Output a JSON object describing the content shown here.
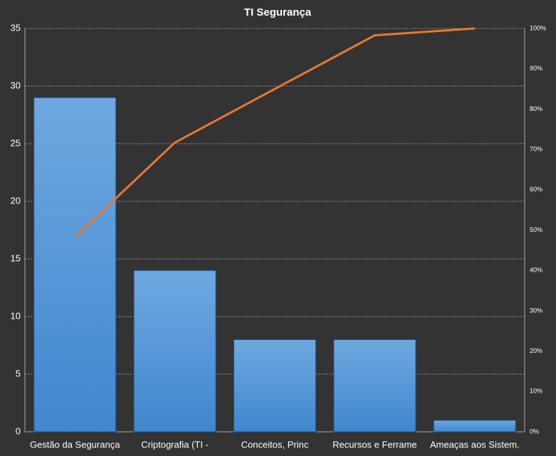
{
  "chart_data": {
    "type": "pareto",
    "title": "TI Segurança",
    "categories": [
      "Gestão da Segurança",
      "Criptografia (TI -",
      "Conceitos, Princ",
      "Recursos e Ferrame",
      "Ameaças aos Sistem."
    ],
    "series": [
      {
        "type": "bar",
        "color": "#4a8fd6",
        "values": [
          29,
          14,
          8,
          8,
          1
        ]
      },
      {
        "type": "line",
        "color": "#e8782e",
        "axis": "y2",
        "values": [
          48.3,
          71.7,
          85,
          98.3,
          100
        ]
      }
    ],
    "ylim": [
      0,
      35
    ],
    "yticks": [
      0,
      5,
      10,
      15,
      20,
      25,
      30,
      35
    ],
    "y2lim": [
      0,
      100
    ],
    "y2ticks": [
      {
        "value": 0,
        "label": "0%"
      },
      {
        "value": 10,
        "label": "10%"
      },
      {
        "value": 20,
        "label": "20%"
      },
      {
        "value": 30,
        "label": "30%"
      },
      {
        "value": 40,
        "label": "40%"
      },
      {
        "value": 50,
        "label": "50%"
      },
      {
        "value": 60,
        "label": "60%"
      },
      {
        "value": 70,
        "label": "70%"
      },
      {
        "value": 80,
        "label": "80%"
      },
      {
        "value": 90,
        "label": "90%"
      },
      {
        "value": 100,
        "label": "100%"
      }
    ],
    "grid": true
  }
}
